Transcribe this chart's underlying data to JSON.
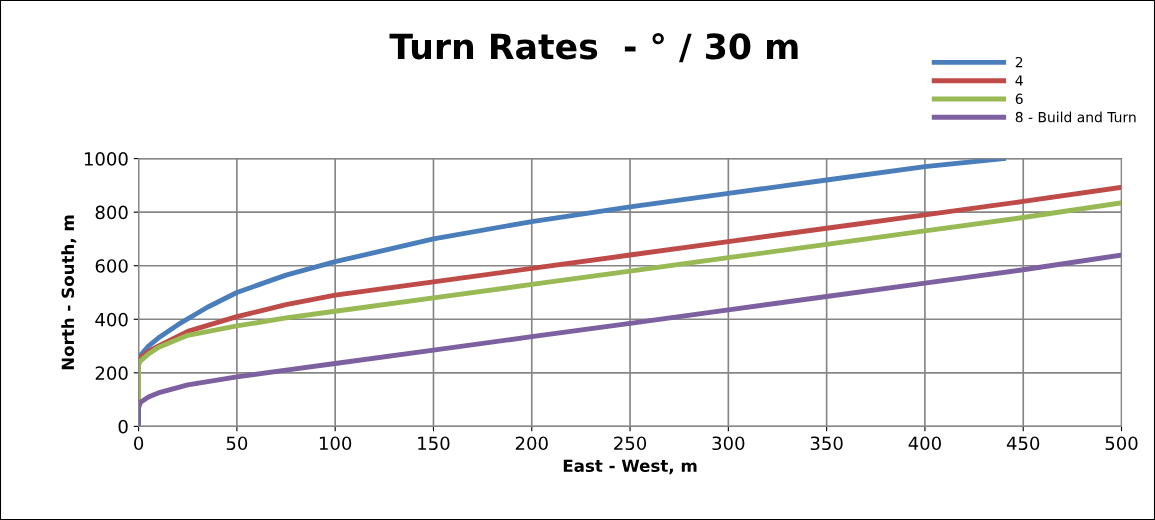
{
  "chart_data": {
    "type": "line",
    "title": "Turn Rates  - ° / 30 m",
    "xlabel": "East - West, m",
    "ylabel": "North - South, m",
    "xlim": [
      0,
      500
    ],
    "xticks": [
      0,
      50,
      100,
      150,
      200,
      250,
      300,
      350,
      400,
      450,
      500
    ],
    "ylim": [
      0,
      1000
    ],
    "yticks": [
      0,
      200,
      400,
      600,
      800,
      1000
    ],
    "grid": true,
    "legend": "top right",
    "marker": "none",
    "line_style": "solid",
    "series": [
      {
        "name": "2",
        "color": "#4a7ebb",
        "x": [
          0,
          1,
          5,
          10,
          20,
          35,
          50,
          75,
          100,
          150,
          200,
          250,
          300,
          350,
          400,
          440
        ],
        "values": [
          250,
          265,
          300,
          330,
          380,
          445,
          500,
          565,
          615,
          700,
          765,
          820,
          870,
          920,
          970,
          1000
        ]
      },
      {
        "name": "4",
        "color": "#be4b48",
        "x": [
          0,
          1,
          5,
          10,
          25,
          50,
          75,
          100,
          150,
          200,
          250,
          300,
          350,
          400,
          450,
          500
        ],
        "values": [
          240,
          255,
          280,
          300,
          355,
          410,
          455,
          490,
          540,
          590,
          640,
          690,
          740,
          790,
          840,
          893
        ]
      },
      {
        "name": "6",
        "color": "#98b954",
        "x": [
          0,
          0,
          1,
          5,
          10,
          25,
          50,
          75,
          100,
          150,
          200,
          250,
          300,
          350,
          400,
          450,
          500
        ],
        "values": [
          90,
          230,
          245,
          270,
          295,
          340,
          375,
          405,
          430,
          480,
          530,
          580,
          630,
          680,
          730,
          780,
          835
        ]
      },
      {
        "name": "8 - Build and Turn",
        "color": "#7d60a0",
        "x": [
          0,
          0,
          1,
          5,
          10,
          25,
          50,
          75,
          100,
          150,
          200,
          250,
          300,
          350,
          400,
          450,
          500
        ],
        "values": [
          0,
          70,
          90,
          110,
          125,
          155,
          185,
          210,
          235,
          285,
          335,
          385,
          435,
          485,
          535,
          585,
          640
        ]
      }
    ]
  }
}
